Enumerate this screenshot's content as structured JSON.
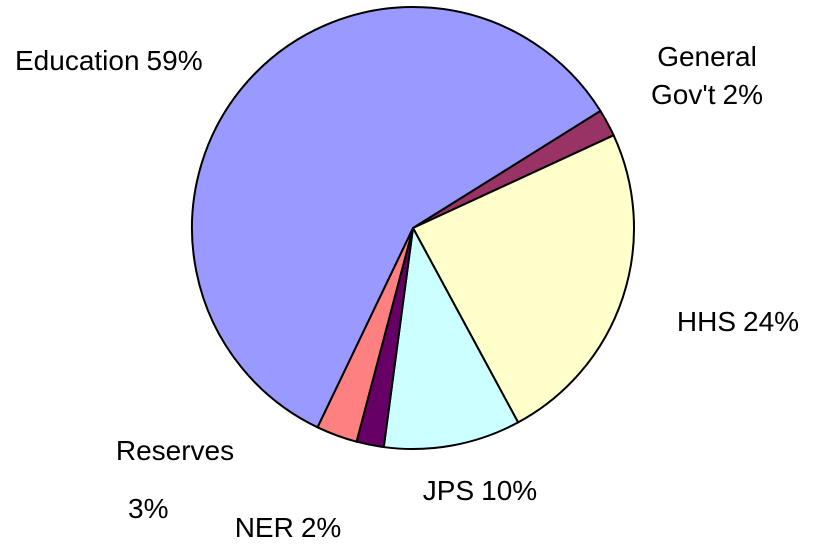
{
  "chart_data": {
    "type": "pie",
    "categories": [
      "General Gov't",
      "HHS",
      "JPS",
      "NER",
      "Reserves",
      "Education"
    ],
    "values": [
      2,
      24,
      10,
      2,
      3,
      59
    ],
    "value_labels": [
      "2%",
      "24%",
      "10%",
      "2%",
      "3%",
      "59%"
    ],
    "colors": [
      "#993366",
      "#ffffcc",
      "#ccffff",
      "#660066",
      "#ff8080",
      "#9999ff"
    ]
  }
}
